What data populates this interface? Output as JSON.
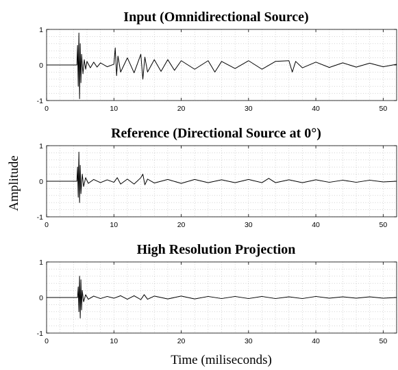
{
  "chart_data": [
    {
      "type": "line",
      "title": "Input (Omnidirectional Source)",
      "xlim": [
        0,
        52
      ],
      "ylim": [
        -1,
        1
      ],
      "xticks": [
        0,
        10,
        20,
        30,
        40,
        50
      ],
      "yticks": [
        -1,
        0,
        1
      ],
      "grid": "minor dotted",
      "series": [
        {
          "x": [
            0,
            4.5,
            4.6,
            4.7,
            4.8,
            4.9,
            5.0,
            5.1,
            5.2,
            5.4,
            5.6,
            5.8,
            6.0,
            6.5,
            7,
            7.5,
            8,
            9,
            10,
            10.2,
            10.4,
            10.6,
            11,
            12,
            13,
            14,
            14.3,
            14.6,
            15,
            16,
            17,
            18,
            19,
            20,
            22,
            24,
            25,
            26,
            28,
            30,
            32,
            34,
            36,
            36.5,
            37,
            38,
            40,
            42,
            44,
            46,
            48,
            50,
            52
          ],
          "y": [
            0,
            0,
            0.55,
            -0.6,
            0.9,
            -0.95,
            0.6,
            -0.5,
            0.3,
            -0.25,
            0.15,
            -0.12,
            0.1,
            -0.08,
            0.08,
            -0.06,
            0.06,
            -0.05,
            0.02,
            0.48,
            -0.3,
            0.25,
            -0.2,
            0.2,
            -0.22,
            0.3,
            -0.4,
            0.22,
            -0.2,
            0.15,
            -0.18,
            0.15,
            -0.15,
            0.12,
            -0.12,
            0.12,
            -0.2,
            0.1,
            -0.1,
            0.12,
            -0.12,
            0.1,
            0.12,
            -0.2,
            0.1,
            -0.08,
            0.08,
            -0.07,
            0.06,
            -0.06,
            0.05,
            -0.05,
            0.02
          ]
        }
      ]
    },
    {
      "type": "line",
      "title": "Reference (Directional Source at 0°)",
      "xlim": [
        0,
        52
      ],
      "ylim": [
        -1,
        1
      ],
      "xticks": [
        0,
        10,
        20,
        30,
        40,
        50
      ],
      "yticks": [
        -1,
        0,
        1
      ],
      "grid": "minor dotted",
      "series": [
        {
          "x": [
            0,
            4.5,
            4.6,
            4.7,
            4.8,
            4.9,
            5.0,
            5.1,
            5.3,
            5.5,
            5.8,
            6.2,
            7,
            8,
            9,
            10,
            10.5,
            11,
            12,
            13,
            14,
            14.3,
            14.6,
            15,
            16,
            18,
            20,
            22,
            24,
            26,
            28,
            30,
            32,
            33,
            34,
            36,
            38,
            40,
            42,
            44,
            46,
            48,
            50,
            52
          ],
          "y": [
            0,
            0,
            0.4,
            -0.45,
            0.82,
            -0.6,
            0.45,
            -0.35,
            0.2,
            -0.15,
            0.1,
            -0.06,
            0.05,
            -0.04,
            0.04,
            -0.03,
            0.1,
            -0.08,
            0.06,
            -0.08,
            0.1,
            0.2,
            -0.1,
            0.06,
            -0.05,
            0.05,
            -0.06,
            0.05,
            -0.04,
            0.04,
            -0.04,
            0.05,
            -0.04,
            0.08,
            -0.04,
            0.04,
            -0.04,
            0.04,
            -0.03,
            0.03,
            -0.03,
            0.03,
            -0.02,
            0
          ]
        }
      ]
    },
    {
      "type": "line",
      "title": "High Resolution Projection",
      "xlim": [
        0,
        52
      ],
      "ylim": [
        -1,
        1
      ],
      "xticks": [
        0,
        10,
        20,
        30,
        40,
        50
      ],
      "yticks": [
        -1,
        0,
        1
      ],
      "grid": "minor dotted",
      "series": [
        {
          "x": [
            0,
            4.6,
            4.7,
            4.8,
            4.9,
            5.0,
            5.1,
            5.2,
            5.3,
            5.5,
            5.8,
            6.2,
            7,
            8,
            9,
            10,
            11,
            12,
            13,
            14,
            14.5,
            15,
            16,
            18,
            20,
            22,
            24,
            26,
            28,
            30,
            32,
            34,
            36,
            38,
            40,
            42,
            44,
            46,
            48,
            50,
            52
          ],
          "y": [
            0,
            0,
            0.3,
            -0.4,
            0.6,
            -0.58,
            0.5,
            -0.35,
            0.2,
            -0.12,
            0.08,
            -0.05,
            0.04,
            -0.03,
            0.03,
            -0.02,
            0.05,
            -0.05,
            0.05,
            -0.06,
            0.08,
            -0.05,
            0.04,
            -0.04,
            0.04,
            -0.04,
            0.03,
            -0.03,
            0.03,
            -0.03,
            0.03,
            -0.03,
            0.02,
            -0.03,
            0.03,
            -0.02,
            0.02,
            -0.02,
            0.02,
            -0.02,
            0
          ]
        }
      ]
    }
  ],
  "shared_ylabel": "Amplitude",
  "shared_xlabel": "Time (miliseconds)"
}
